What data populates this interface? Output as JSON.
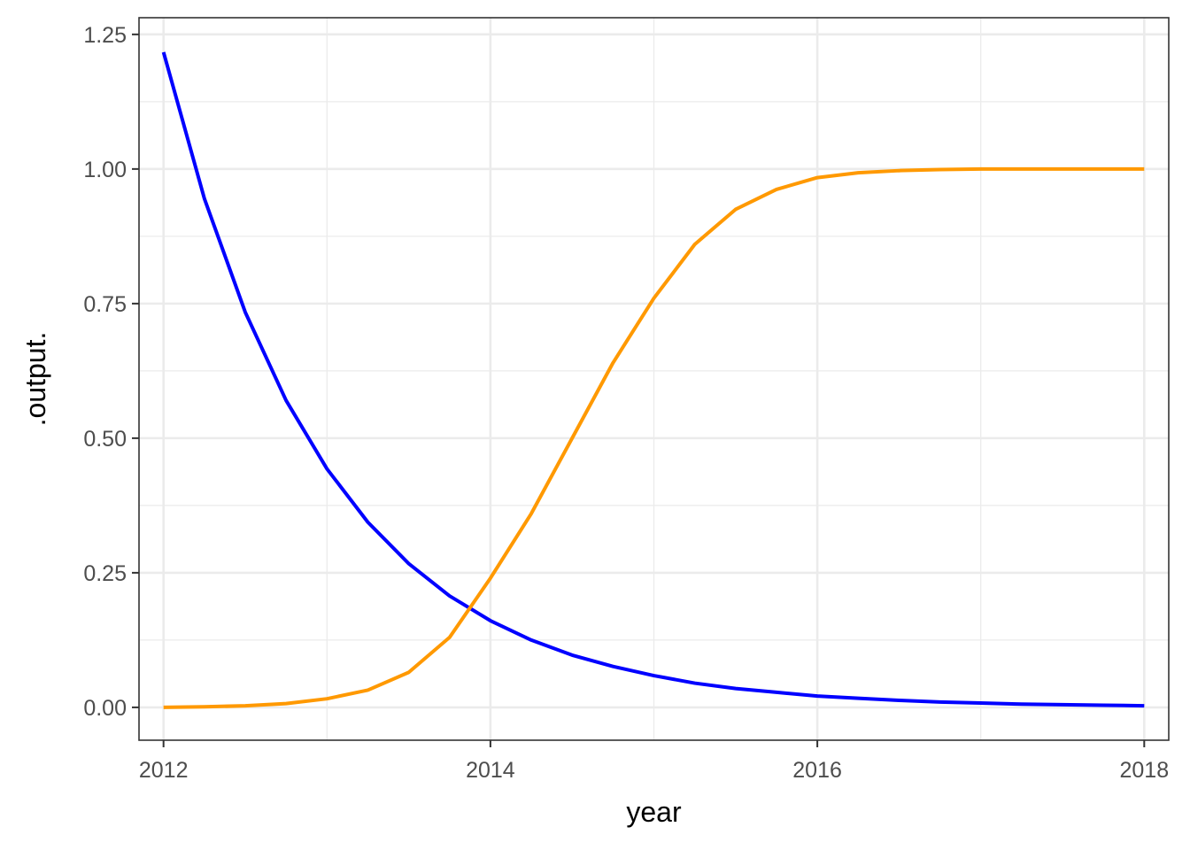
{
  "chart_data": {
    "type": "line",
    "xlabel": "year",
    "ylabel": ".output.",
    "xlim": [
      2011.85,
      2018.15
    ],
    "ylim": [
      -0.061,
      1.281
    ],
    "x_ticks": [
      2012,
      2014,
      2016,
      2018
    ],
    "x_tick_labels": [
      "2012",
      "2014",
      "2016",
      "2018"
    ],
    "x_minor_ticks": [
      2013,
      2015,
      2017
    ],
    "y_ticks": [
      0,
      0.25,
      0.5,
      0.75,
      1.0,
      1.25
    ],
    "y_tick_labels": [
      "0.00",
      "0.25",
      "0.50",
      "0.75",
      "1.00",
      "1.25"
    ],
    "y_minor_ticks": [
      0.125,
      0.375,
      0.625,
      0.875,
      1.125
    ],
    "grid": true,
    "legend": "none",
    "series": [
      {
        "color": "#0000ff",
        "x": [
          2012.0,
          2012.25,
          2012.5,
          2012.75,
          2013.0,
          2013.25,
          2013.5,
          2013.75,
          2014.0,
          2014.25,
          2014.5,
          2014.75,
          2015.0,
          2015.25,
          2015.5,
          2015.75,
          2016.0,
          2016.25,
          2016.5,
          2016.75,
          2017.0,
          2017.25,
          2017.5,
          2017.75,
          2018.0
        ],
        "y": [
          1.217,
          0.945,
          0.734,
          0.57,
          0.443,
          0.344,
          0.267,
          0.207,
          0.161,
          0.125,
          0.097,
          0.076,
          0.059,
          0.045,
          0.035,
          0.028,
          0.021,
          0.017,
          0.013,
          0.01,
          0.008,
          0.006,
          0.005,
          0.004,
          0.003
        ]
      },
      {
        "color": "#ff9900",
        "x": [
          2012.0,
          2012.25,
          2012.5,
          2012.75,
          2013.0,
          2013.25,
          2013.5,
          2013.75,
          2014.0,
          2014.25,
          2014.5,
          2014.75,
          2015.0,
          2015.25,
          2015.5,
          2015.75,
          2016.0,
          2016.25,
          2016.5,
          2016.75,
          2017.0,
          2017.25,
          2017.5,
          2017.75,
          2018.0
        ],
        "y": [
          0.0,
          0.001,
          0.003,
          0.007,
          0.016,
          0.032,
          0.065,
          0.13,
          0.24,
          0.36,
          0.5,
          0.64,
          0.76,
          0.86,
          0.925,
          0.962,
          0.984,
          0.993,
          0.997,
          0.999,
          1.0,
          1.0,
          1.0,
          1.0,
          1.0
        ]
      }
    ]
  }
}
